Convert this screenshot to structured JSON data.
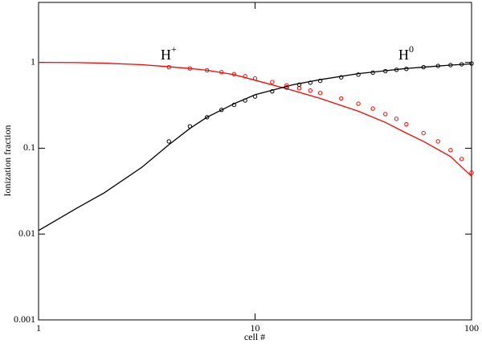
{
  "chart_data": {
    "type": "line",
    "xlabel": "cell #",
    "ylabel": "Ionization fraction",
    "xscale": "log",
    "yscale": "log",
    "xlim": [
      1,
      100
    ],
    "ylim": [
      0.001,
      5
    ],
    "xticks": [
      1,
      10,
      100
    ],
    "yticks": [
      0.001,
      0.01,
      0.1,
      1
    ],
    "annotations": [
      {
        "base": "H",
        "sup": "+"
      },
      {
        "base": "H",
        "sup": "0"
      }
    ],
    "series": [
      {
        "style": "line",
        "color": "#ff0000",
        "x": [
          1,
          1.5,
          2,
          3,
          4,
          5,
          6,
          8,
          10,
          15,
          20,
          30,
          40,
          50,
          60,
          80,
          100
        ],
        "values": [
          1,
          0.995,
          0.98,
          0.94,
          0.89,
          0.85,
          0.81,
          0.72,
          0.62,
          0.47,
          0.38,
          0.27,
          0.2,
          0.15,
          0.12,
          0.08,
          0.047
        ]
      },
      {
        "style": "line",
        "color": "#000000",
        "x": [
          1,
          1.5,
          2,
          3,
          4,
          5,
          6,
          8,
          10,
          15,
          20,
          30,
          40,
          50,
          60,
          80,
          100
        ],
        "values": [
          0.011,
          0.02,
          0.03,
          0.06,
          0.11,
          0.17,
          0.23,
          0.33,
          0.42,
          0.55,
          0.63,
          0.74,
          0.8,
          0.85,
          0.88,
          0.93,
          0.96
        ]
      },
      {
        "style": "markers",
        "color": "#ff0000",
        "x": [
          4,
          5,
          6,
          7,
          8,
          9,
          10,
          12,
          14,
          16,
          18,
          20,
          25,
          30,
          35,
          40,
          45,
          50,
          60,
          70,
          80,
          90,
          100
        ],
        "values": [
          0.88,
          0.85,
          0.81,
          0.77,
          0.73,
          0.69,
          0.65,
          0.59,
          0.54,
          0.5,
          0.47,
          0.44,
          0.38,
          0.33,
          0.29,
          0.25,
          0.22,
          0.19,
          0.15,
          0.12,
          0.095,
          0.075,
          0.052
        ]
      },
      {
        "style": "markers",
        "color": "#000000",
        "x": [
          4,
          5,
          6,
          7,
          8,
          9,
          10,
          12,
          14,
          16,
          18,
          20,
          25,
          30,
          35,
          40,
          45,
          50,
          60,
          70,
          80,
          90,
          100
        ],
        "values": [
          0.12,
          0.18,
          0.23,
          0.28,
          0.32,
          0.36,
          0.4,
          0.46,
          0.51,
          0.55,
          0.58,
          0.61,
          0.67,
          0.72,
          0.76,
          0.79,
          0.82,
          0.84,
          0.88,
          0.91,
          0.93,
          0.95,
          0.97
        ]
      }
    ]
  }
}
